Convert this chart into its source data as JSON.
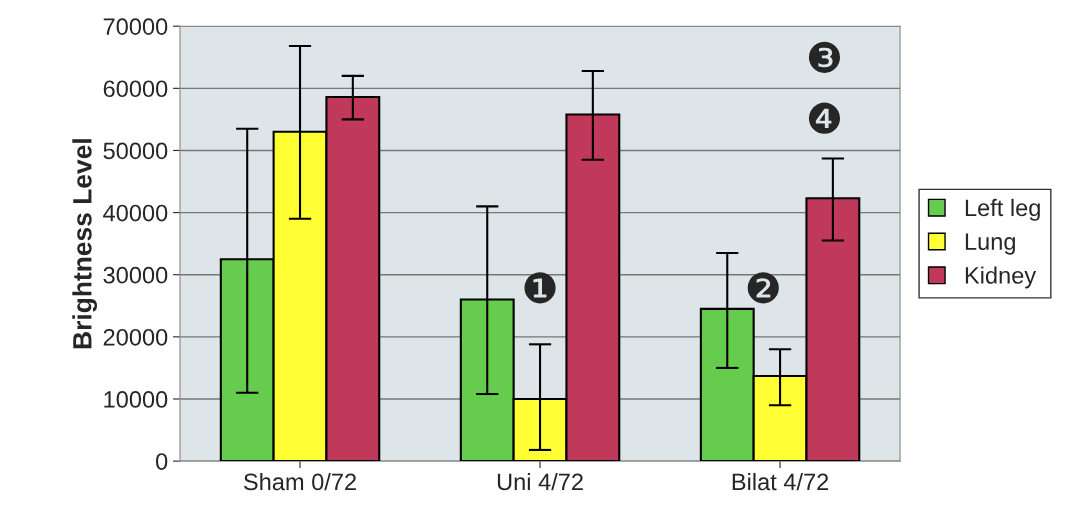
{
  "chart_data": {
    "type": "bar",
    "ylabel": "Brightness Level",
    "categories": [
      "Sham 0/72",
      "Uni 4/72",
      "Bilat 4/72"
    ],
    "series": [
      {
        "name": "Left leg",
        "color": "#66cc4d",
        "values": [
          32500,
          26000,
          24500
        ],
        "errors": [
          [
            11000,
            53500
          ],
          [
            10800,
            41000
          ],
          [
            15000,
            33500
          ]
        ]
      },
      {
        "name": "Lung",
        "color": "#ffff33",
        "values": [
          53000,
          10000,
          13700
        ],
        "errors": [
          [
            39000,
            66800
          ],
          [
            1800,
            18800
          ],
          [
            9000,
            18000
          ]
        ]
      },
      {
        "name": "Kidney",
        "color": "#c0395a",
        "values": [
          58600,
          55800,
          42300
        ],
        "errors": [
          [
            55000,
            62000
          ],
          [
            48500,
            62800
          ],
          [
            35500,
            48700
          ]
        ]
      }
    ],
    "ylim": [
      0,
      70000
    ],
    "yticks": [
      0,
      10000,
      20000,
      30000,
      40000,
      50000,
      60000,
      70000
    ],
    "grid": "y",
    "legend": "right",
    "annotations": [
      "❶",
      "❷",
      "❸",
      "❹"
    ]
  }
}
